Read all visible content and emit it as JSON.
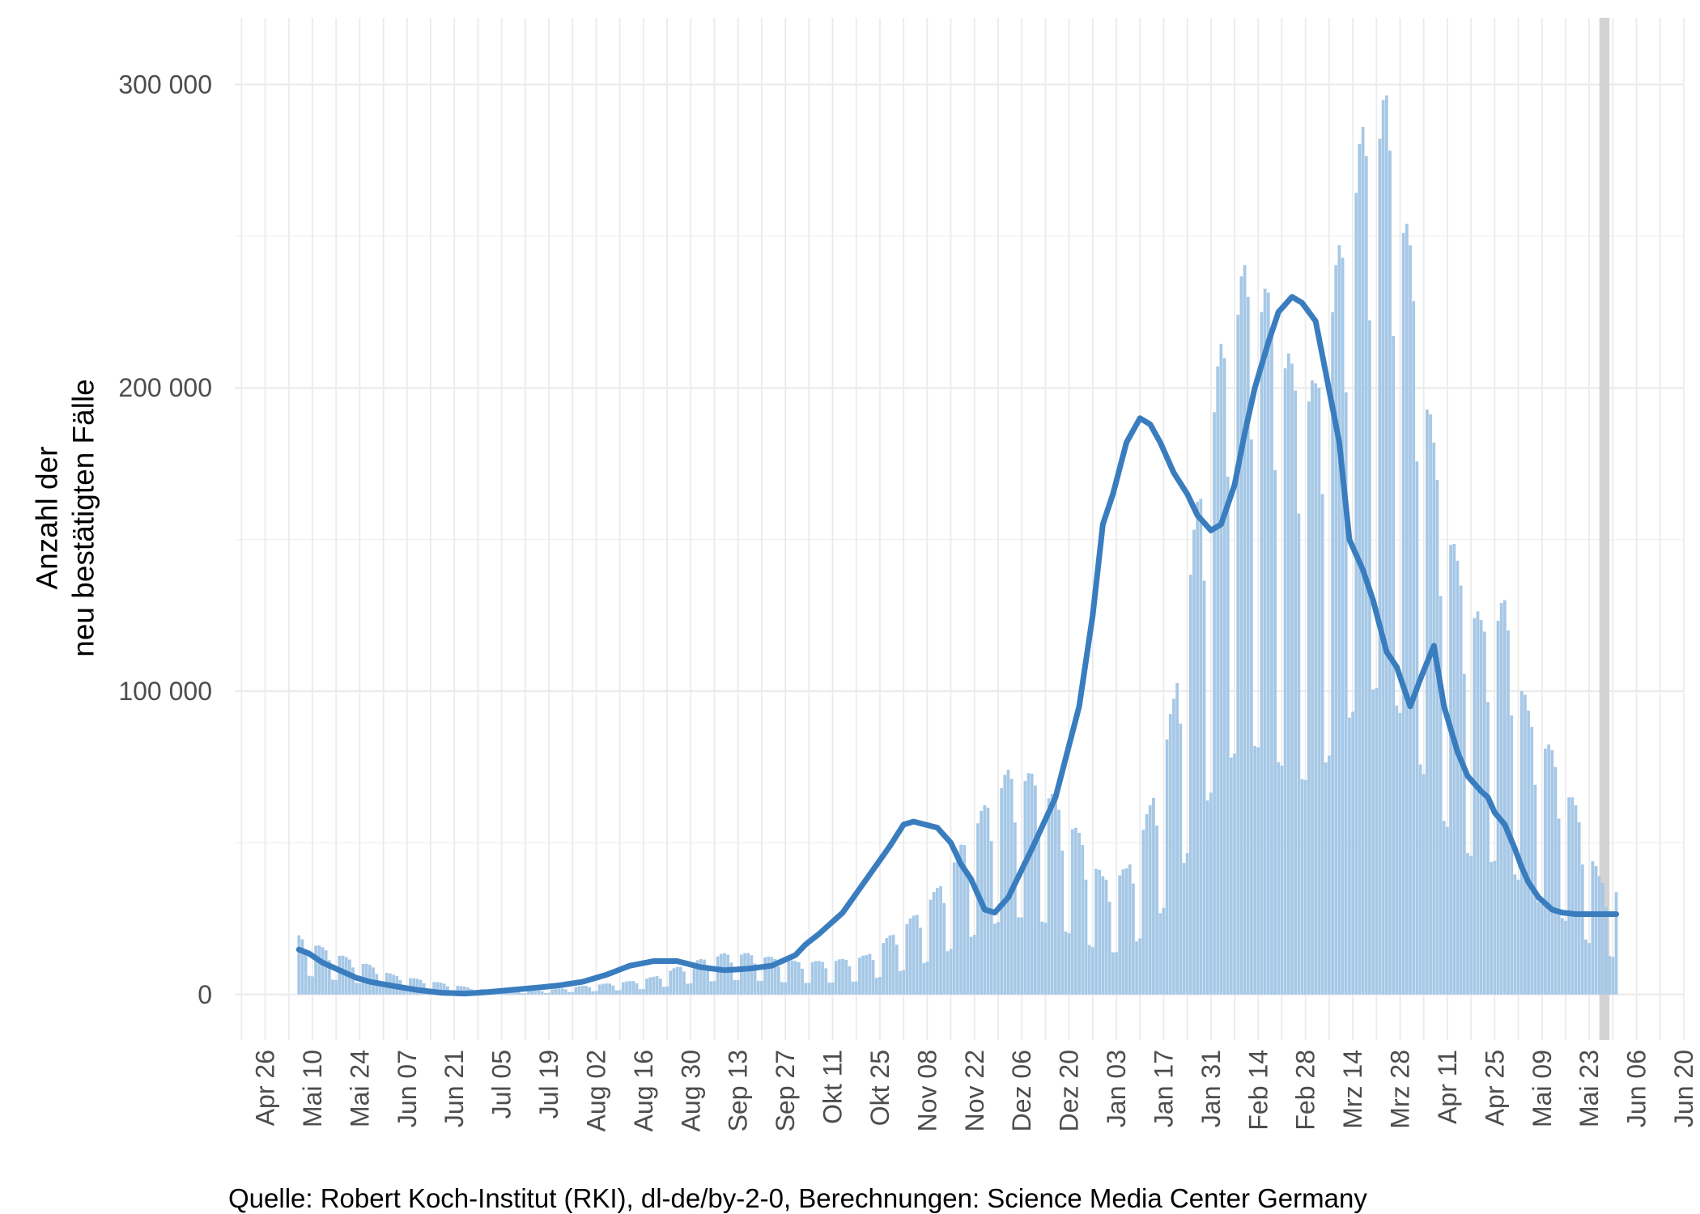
{
  "chart_data": {
    "type": "bar",
    "title": "",
    "ylabel_lines": [
      "Anzahl der",
      "neu bestätigten Fälle"
    ],
    "caption": "Quelle: Robert Koch-Institut (RKI), dl-de/by-2-0, Berechnungen: Science Media Center Germany",
    "ylim": [
      -15000,
      322000
    ],
    "xlim": [
      "2021-04-17",
      "2022-06-20"
    ],
    "y_ticks": [
      0,
      100000,
      200000,
      300000
    ],
    "y_tick_labels": [
      "0",
      "100 000",
      "200 000",
      "300 000"
    ],
    "x_ticks": [
      "2021-04-26",
      "2021-05-10",
      "2021-05-24",
      "2021-06-07",
      "2021-06-21",
      "2021-07-05",
      "2021-07-19",
      "2021-08-02",
      "2021-08-16",
      "2021-08-30",
      "2021-09-13",
      "2021-09-27",
      "2021-10-11",
      "2021-10-25",
      "2021-11-08",
      "2021-11-22",
      "2021-12-06",
      "2021-12-20",
      "2022-01-03",
      "2022-01-17",
      "2022-01-31",
      "2022-02-14",
      "2022-02-28",
      "2022-03-14",
      "2022-03-28",
      "2022-04-11",
      "2022-04-25",
      "2022-05-09",
      "2022-05-23",
      "2022-06-06",
      "2022-06-20"
    ],
    "x_tick_labels": [
      "Apr 26",
      "Mai 10",
      "Mai 24",
      "Jun 07",
      "Jun 21",
      "Jul 05",
      "Jul 19",
      "Aug 02",
      "Aug 16",
      "Aug 30",
      "Sep 13",
      "Sep 27",
      "Okt 11",
      "Okt 25",
      "Nov 08",
      "Nov 22",
      "Dez 06",
      "Dez 20",
      "Jan 03",
      "Jan 17",
      "Jan 31",
      "Feb 14",
      "Feb 28",
      "Mrz 14",
      "Mrz 28",
      "Apr 11",
      "Apr 25",
      "Mai 09",
      "Mai 23",
      "Jun 06",
      "Jun 20"
    ],
    "shaded_range": [
      "2022-05-26",
      "2022-05-29"
    ],
    "grid": true,
    "series": [
      {
        "kind": "bars",
        "start_date": "2021-05-06",
        "weekly_profile": [
          1.3,
          1.25,
          1.0,
          0.45,
          0.45,
          1.25,
          1.3
        ],
        "anchor_days": [
          0,
          7,
          14,
          21,
          28,
          35,
          42,
          49,
          56,
          63,
          70,
          77,
          84,
          91,
          98,
          105,
          112,
          119,
          126,
          133,
          140,
          147,
          154,
          161,
          168,
          175,
          182,
          189,
          196,
          203,
          210,
          217,
          224,
          231,
          238,
          245,
          252,
          259,
          266,
          273,
          280,
          287,
          294,
          301,
          308,
          315,
          322,
          329,
          336,
          343,
          350,
          357,
          364,
          371,
          378,
          385,
          390
        ],
        "anchor_values": [
          15000,
          12000,
          9500,
          7500,
          5000,
          4000,
          3000,
          2000,
          1200,
          900,
          900,
          1500,
          2200,
          2800,
          3400,
          4500,
          7000,
          9000,
          10500,
          10500,
          9500,
          8500,
          8500,
          9000,
          10000,
          15000,
          20000,
          27000,
          38000,
          48000,
          57000,
          56000,
          50000,
          41000,
          30000,
          32000,
          48000,
          75000,
          125000,
          165000,
          185000,
          178000,
          160000,
          155000,
          190000,
          220000,
          228000,
          190000,
          140000,
          110000,
          95000,
          100000,
          72000,
          62000,
          48000,
          30000,
          27000
        ]
      },
      {
        "kind": "line",
        "name": "",
        "start_date": "2021-05-06",
        "anchor_days": [
          0,
          3,
          7,
          10,
          14,
          17,
          21,
          28,
          35,
          42,
          49,
          56,
          63,
          70,
          77,
          84,
          91,
          98,
          105,
          112,
          119,
          126,
          133,
          140,
          147,
          150,
          154,
          161,
          168,
          175,
          179,
          182,
          189,
          193,
          196,
          199,
          203,
          206,
          210,
          217,
          224,
          231,
          235,
          238,
          241,
          245,
          249,
          252,
          255,
          259,
          263,
          266,
          270,
          273,
          277,
          280,
          283,
          287,
          290,
          294,
          297,
          301,
          304,
          308,
          311,
          315,
          318,
          322,
          325,
          329,
          332,
          336,
          339,
          343,
          346,
          350,
          352,
          354,
          357,
          360,
          362,
          364,
          367,
          371,
          374,
          378,
          381,
          385,
          388,
          390
        ],
        "anchor_values": [
          14800,
          13500,
          10500,
          9000,
          7000,
          5500,
          4200,
          2800,
          1500,
          600,
          300,
          800,
          1500,
          2200,
          3000,
          4200,
          6500,
          9500,
          11000,
          11000,
          9000,
          8000,
          8500,
          9500,
          13000,
          16500,
          20000,
          27000,
          38000,
          49000,
          56000,
          57000,
          55000,
          50000,
          43000,
          38000,
          28000,
          27000,
          32000,
          48000,
          65000,
          95000,
          125000,
          155000,
          165000,
          182000,
          190000,
          188000,
          182000,
          172000,
          165000,
          158000,
          153000,
          155000,
          168000,
          185000,
          200000,
          215000,
          225000,
          230000,
          228000,
          222000,
          205000,
          182000,
          150000,
          140000,
          130000,
          113000,
          108000,
          95000,
          104000,
          115000,
          95000,
          80000,
          72000,
          67000,
          65000,
          60000,
          56000,
          48000,
          42000,
          37000,
          32000,
          28000,
          27000,
          26500,
          26500,
          26500,
          26500,
          26500
        ]
      }
    ]
  }
}
